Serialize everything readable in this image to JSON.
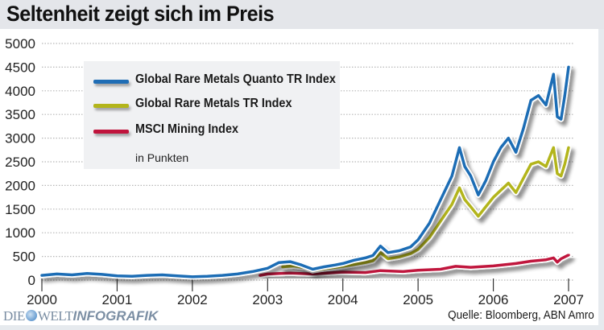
{
  "header": {
    "title": "Seltenheit zeigt sich im Preis"
  },
  "footer": {
    "logo_die": "DIE",
    "logo_welt": "WELT",
    "logo_infografik": "INFOGRAFIK",
    "source": "Quelle: Bloomberg, ABN Amro"
  },
  "chart_data": {
    "type": "line",
    "title": "Seltenheit zeigt sich im Preis",
    "xlabel": "",
    "ylabel": "in Punkten",
    "unit_note": "in Punkten",
    "xlim": [
      2000,
      2007
    ],
    "ylim": [
      0,
      5000
    ],
    "x_ticks": [
      "2000",
      "2001",
      "2002",
      "2003",
      "2004",
      "2005",
      "2006",
      "2007"
    ],
    "y_ticks": [
      "0",
      "500",
      "1000",
      "1500",
      "2000",
      "2500",
      "3000",
      "3500",
      "4000",
      "4500",
      "5000"
    ],
    "grid": true,
    "legend_position": "top-left",
    "series": [
      {
        "name": "Global Rare Metals Quanto TR Index",
        "color": "#1f6db5",
        "x": [
          2000.0,
          2000.2,
          2000.4,
          2000.6,
          2000.8,
          2001.0,
          2001.2,
          2001.4,
          2001.6,
          2001.8,
          2002.0,
          2002.2,
          2002.4,
          2002.6,
          2002.8,
          2003.0,
          2003.15,
          2003.3,
          2003.45,
          2003.6,
          2003.75,
          2003.9,
          2004.0,
          2004.15,
          2004.3,
          2004.4,
          2004.5,
          2004.6,
          2004.75,
          2004.9,
          2005.0,
          2005.15,
          2005.3,
          2005.45,
          2005.55,
          2005.62,
          2005.7,
          2005.8,
          2005.9,
          2006.0,
          2006.1,
          2006.2,
          2006.3,
          2006.4,
          2006.5,
          2006.6,
          2006.7,
          2006.8,
          2006.85,
          2006.9,
          2006.95,
          2007.0
        ],
        "values": [
          100,
          130,
          110,
          140,
          120,
          90,
          80,
          100,
          110,
          90,
          70,
          80,
          100,
          130,
          180,
          250,
          370,
          390,
          320,
          230,
          280,
          320,
          350,
          420,
          470,
          520,
          720,
          580,
          620,
          700,
          850,
          1200,
          1700,
          2200,
          2800,
          2400,
          2200,
          1800,
          2100,
          2500,
          2800,
          3000,
          2700,
          3200,
          3800,
          3900,
          3700,
          4350,
          3450,
          3400,
          3900,
          4500
        ]
      },
      {
        "name": "Global Rare Metals TR Index",
        "color": "#b3b51a",
        "x": [
          2003.2,
          2003.35,
          2003.5,
          2003.6,
          2003.75,
          2003.9,
          2004.0,
          2004.15,
          2004.3,
          2004.4,
          2004.5,
          2004.6,
          2004.75,
          2004.9,
          2005.0,
          2005.15,
          2005.3,
          2005.45,
          2005.55,
          2005.62,
          2005.7,
          2005.8,
          2005.9,
          2006.0,
          2006.1,
          2006.2,
          2006.3,
          2006.4,
          2006.5,
          2006.6,
          2006.7,
          2006.8,
          2006.85,
          2006.9,
          2006.95,
          2007.0
        ],
        "values": [
          280,
          300,
          260,
          200,
          240,
          270,
          290,
          330,
          370,
          410,
          580,
          450,
          490,
          560,
          650,
          900,
          1250,
          1600,
          1950,
          1700,
          1550,
          1350,
          1550,
          1750,
          1900,
          2050,
          1850,
          2150,
          2450,
          2500,
          2400,
          2800,
          2250,
          2200,
          2450,
          2800
        ]
      },
      {
        "name": "MSCI Mining Index",
        "color": "#c0143c",
        "x": [
          2002.9,
          2003.0,
          2003.3,
          2003.6,
          2004.0,
          2004.3,
          2004.5,
          2004.8,
          2005.0,
          2005.3,
          2005.5,
          2005.7,
          2006.0,
          2006.3,
          2006.5,
          2006.7,
          2006.8,
          2006.85,
          2006.9,
          2007.0
        ],
        "values": [
          100,
          130,
          150,
          130,
          170,
          160,
          200,
          180,
          210,
          230,
          290,
          270,
          300,
          350,
          400,
          430,
          470,
          380,
          450,
          530
        ]
      }
    ]
  }
}
